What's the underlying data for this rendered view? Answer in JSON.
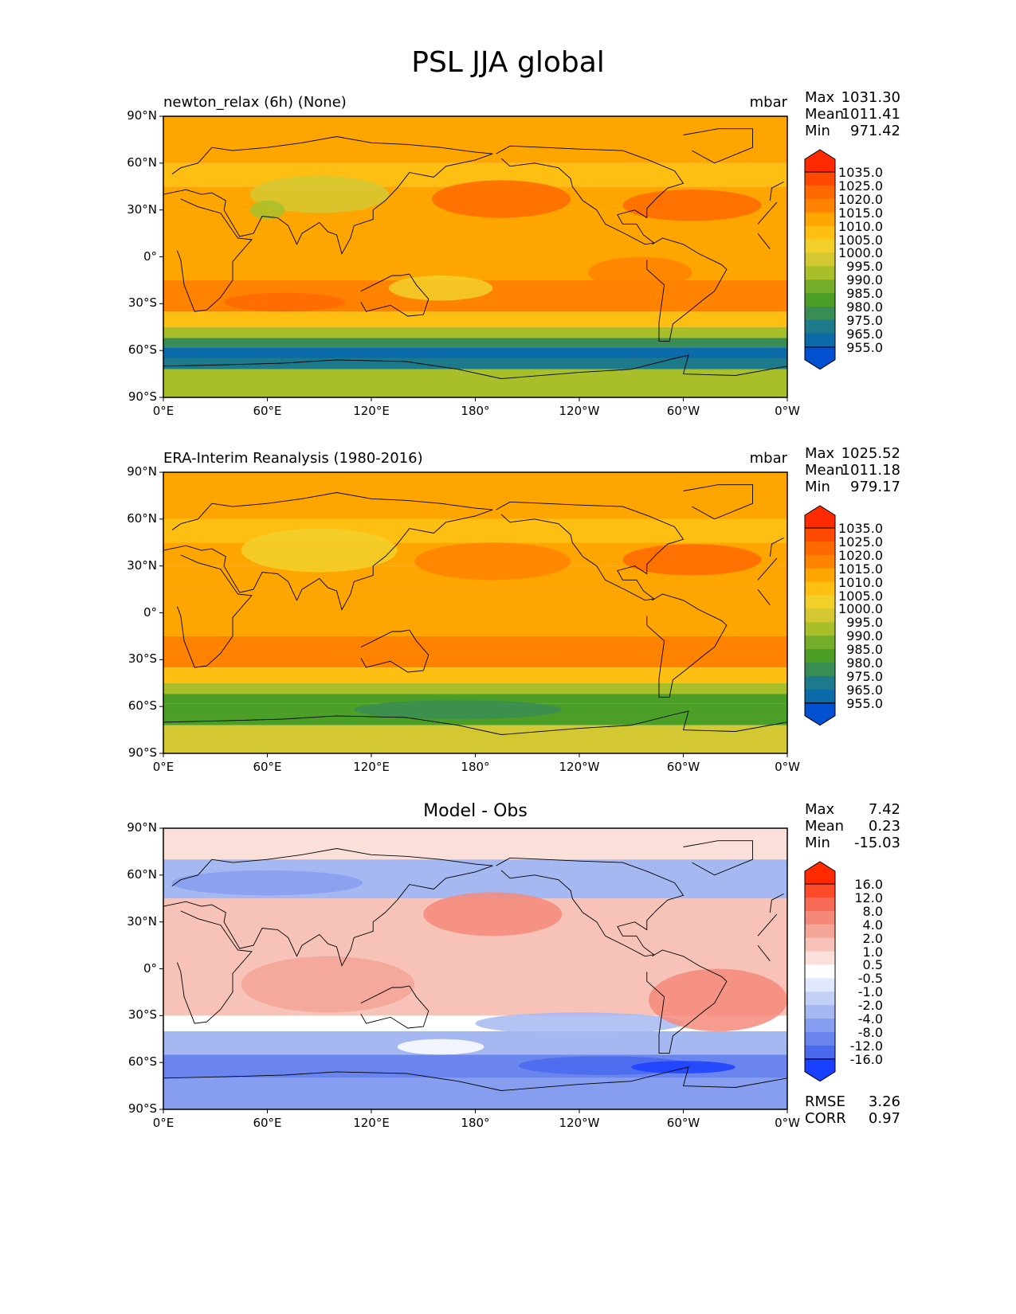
{
  "figure": {
    "title": "PSL JJA global"
  },
  "chart_data": [
    {
      "type": "heatmap",
      "title": "newton_relax (6h) (None)",
      "units": "mbar",
      "stats": {
        "max_label": "Max",
        "max": "1031.30",
        "mean_label": "Mean",
        "mean": "1011.41",
        "min_label": "Min",
        "min": "971.42"
      },
      "x_ticks": [
        "0°E",
        "60°E",
        "120°E",
        "180°",
        "120°W",
        "60°W",
        "0°W"
      ],
      "y_ticks": [
        "90°N",
        "60°N",
        "30°N",
        "0°",
        "30°S",
        "60°S",
        "90°S"
      ],
      "xlim": [
        0,
        360
      ],
      "ylim": [
        -90,
        90
      ],
      "colorbar": {
        "labels": [
          "1035.0",
          "1025.0",
          "1020.0",
          "1015.0",
          "1010.0",
          "1005.0",
          "1000.0",
          "995.0",
          "990.0",
          "985.0",
          "980.0",
          "975.0",
          "965.0",
          "955.0"
        ],
        "colors": [
          "#ff2a00",
          "#ff4800",
          "#ff6900",
          "#ff8200",
          "#ffa500",
          "#ffbe12",
          "#f2d02a",
          "#d4c832",
          "#a8bf2a",
          "#75ad2a",
          "#4b9e26",
          "#3a8c55",
          "#1d7a8a",
          "#0b6aa8",
          "#0050d0"
        ]
      }
    },
    {
      "type": "heatmap",
      "title": "ERA-Interim Reanalysis (1980-2016)",
      "units": "mbar",
      "stats": {
        "max_label": "Max",
        "max": "1025.52",
        "mean_label": "Mean",
        "mean": "1011.18",
        "min_label": "Min",
        "min": "979.17"
      },
      "x_ticks": [
        "0°E",
        "60°E",
        "120°E",
        "180°",
        "120°W",
        "60°W",
        "0°W"
      ],
      "y_ticks": [
        "90°N",
        "60°N",
        "30°N",
        "0°",
        "30°S",
        "60°S",
        "90°S"
      ],
      "xlim": [
        0,
        360
      ],
      "ylim": [
        -90,
        90
      ],
      "colorbar": {
        "labels": [
          "1035.0",
          "1025.0",
          "1020.0",
          "1015.0",
          "1010.0",
          "1005.0",
          "1000.0",
          "995.0",
          "990.0",
          "985.0",
          "980.0",
          "975.0",
          "965.0",
          "955.0"
        ],
        "colors": [
          "#ff2a00",
          "#ff4800",
          "#ff6900",
          "#ff8200",
          "#ffa500",
          "#ffbe12",
          "#f2d02a",
          "#d4c832",
          "#a8bf2a",
          "#75ad2a",
          "#4b9e26",
          "#3a8c55",
          "#1d7a8a",
          "#0b6aa8",
          "#0050d0"
        ]
      }
    },
    {
      "type": "heatmap",
      "title": "Model - Obs",
      "stats": {
        "max_label": "Max",
        "max": "7.42",
        "mean_label": "Mean",
        "mean": "0.23",
        "min_label": "Min",
        "min": "-15.03"
      },
      "metrics": {
        "rmse_label": "RMSE",
        "rmse": "3.26",
        "corr_label": "CORR",
        "corr": "0.97"
      },
      "x_ticks": [
        "0°E",
        "60°E",
        "120°E",
        "180°",
        "120°W",
        "60°W",
        "0°W"
      ],
      "y_ticks": [
        "90°N",
        "60°N",
        "30°N",
        "0°",
        "30°S",
        "60°S",
        "90°S"
      ],
      "xlim": [
        0,
        360
      ],
      "ylim": [
        -90,
        90
      ],
      "colorbar": {
        "labels": [
          "16.0",
          "12.0",
          "8.0",
          "4.0",
          "2.0",
          "1.0",
          "0.5",
          "-0.5",
          "-1.0",
          "-2.0",
          "-4.0",
          "-8.0",
          "-12.0",
          "-16.0"
        ],
        "colors": [
          "#ff2a00",
          "#ff4a2a",
          "#f76a55",
          "#f4897a",
          "#f5a598",
          "#f7c3b8",
          "#fbe0da",
          "#ffffff",
          "#e0e8fb",
          "#c3d1f7",
          "#a5b8f2",
          "#879ef0",
          "#6a85ee",
          "#4a6aee",
          "#1a40ff"
        ]
      }
    }
  ]
}
